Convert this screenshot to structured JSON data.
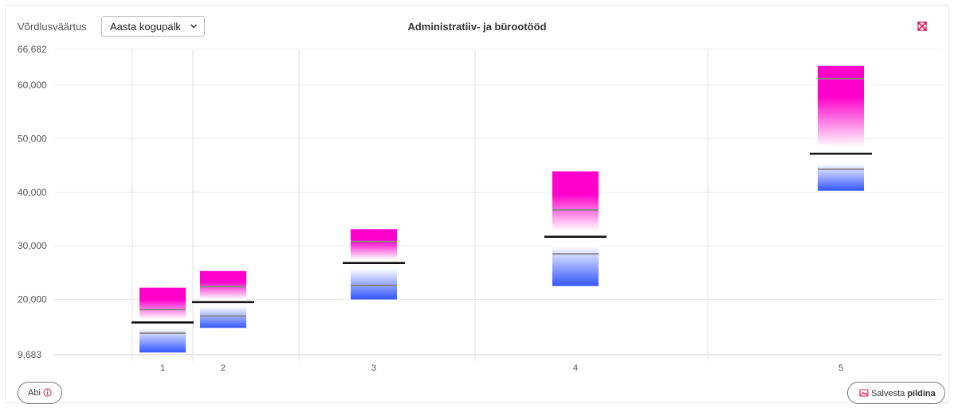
{
  "toolbar": {
    "compare_label": "Võrdlusväärtus",
    "compare_select": "Aasta kogupalk"
  },
  "title": "Administratiiv- ja bürootööd",
  "buttons": {
    "help_label": "Abi",
    "save_prefix": "Salvesta",
    "save_bold": "pildina"
  },
  "icons": {
    "expand": "expand-arrows-icon",
    "chevron": "chevron-down-icon",
    "info": "info-circle-icon",
    "save": "image-icon"
  },
  "colors": {
    "top": "#ff00cc",
    "mid": "#ffffff",
    "bottom": "#3355ff",
    "accent": "#d81b60"
  },
  "chart_data": {
    "type": "bar",
    "title": "Administratiiv- ja bürootööd",
    "categories": [
      "1",
      "2",
      "3",
      "4",
      "5"
    ],
    "ylim": [
      9683,
      66682
    ],
    "yticks": [
      9683,
      20000,
      30000,
      40000,
      50000,
      60000,
      66682
    ],
    "ytick_labels": [
      "9,683",
      "20,000",
      "30,000",
      "40,000",
      "50,000",
      "60,000",
      "66,682"
    ],
    "grid": true,
    "series": [
      {
        "min": 10100,
        "q1": 13700,
        "median": 15700,
        "q3": 18100,
        "max": 22200
      },
      {
        "min": 14700,
        "q1": 16900,
        "median": 19500,
        "q3": 22400,
        "max": 25300
      },
      {
        "min": 20000,
        "q1": 22600,
        "median": 26800,
        "q3": 30800,
        "max": 33100
      },
      {
        "min": 22500,
        "q1": 28500,
        "median": 31700,
        "q3": 36700,
        "max": 43900
      },
      {
        "min": 40300,
        "q1": 44300,
        "median": 47200,
        "q3": 61200,
        "max": 63600
      }
    ]
  }
}
